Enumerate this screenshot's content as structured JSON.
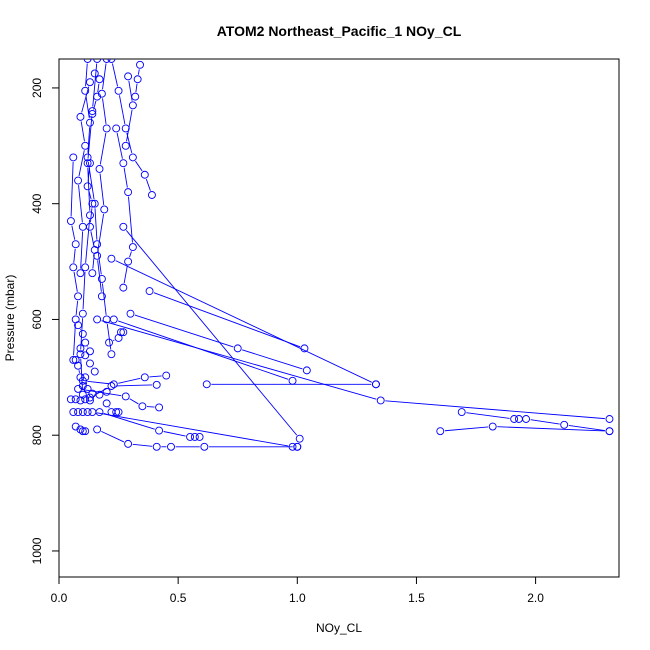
{
  "chart_data": {
    "type": "line",
    "title": "ATOM2 Northeast_Pacific_1 NOy_CL",
    "xlabel": "NOy_CL",
    "ylabel": "Pressure (mbar)",
    "xlim": [
      0.0,
      2.35
    ],
    "ylim": [
      1045,
      150
    ],
    "y_reversed": true,
    "grid": false,
    "x_ticks": [
      0.0,
      0.5,
      1.0,
      1.5,
      2.0
    ],
    "y_ticks": [
      200,
      400,
      600,
      800,
      1000
    ],
    "x_tick_labels": [
      "0.0",
      "0.5",
      "1.0",
      "1.5",
      "2.0"
    ],
    "y_tick_labels": [
      "200",
      "400",
      "600",
      "800",
      "1000"
    ],
    "colors": {
      "series": "#0000ff",
      "axis": "#000000"
    },
    "marker": "open-circle",
    "series": [
      {
        "x": [
          0.12,
          0.11,
          0.13,
          0.12,
          0.15,
          0.16,
          0.18,
          0.2,
          0.22
        ],
        "y": [
          150,
          205,
          260,
          320,
          400,
          470,
          530,
          600,
          660
        ]
      },
      {
        "x": [
          0.16,
          0.14,
          0.12,
          0.13,
          0.11,
          0.1,
          0.09,
          0.1
        ],
        "y": [
          150,
          240,
          330,
          420,
          510,
          590,
          660,
          730
        ]
      },
      {
        "x": [
          0.22,
          0.25,
          0.28,
          0.31,
          0.36,
          0.39
        ],
        "y": [
          150,
          205,
          270,
          320,
          350,
          385
        ]
      },
      {
        "x": [
          0.13,
          0.09,
          0.11,
          0.08,
          0.1,
          0.09
        ],
        "y": [
          190,
          250,
          300,
          360,
          440,
          520
        ]
      },
      {
        "x": [
          0.2,
          0.18,
          0.2,
          0.17,
          0.19,
          0.16,
          0.18
        ],
        "y": [
          150,
          210,
          270,
          340,
          410,
          490,
          560
        ]
      },
      {
        "x": [
          0.06,
          0.05,
          0.07,
          0.06,
          0.08,
          0.07,
          0.06
        ],
        "y": [
          320,
          430,
          470,
          510,
          560,
          600,
          670
        ]
      },
      {
        "x": [
          0.24,
          0.27,
          0.29,
          0.31,
          0.29,
          0.27
        ],
        "y": [
          270,
          330,
          380,
          475,
          500,
          545
        ]
      },
      {
        "x": [
          0.13,
          0.12,
          0.14,
          0.13,
          0.15,
          0.14
        ],
        "y": [
          330,
          370,
          400,
          440,
          480,
          520
        ]
      },
      {
        "x": [
          0.38,
          1.03
        ],
        "y": [
          551,
          650
        ]
      },
      {
        "x": [
          0.3,
          0.75,
          1.04
        ],
        "y": [
          590,
          650,
          688
        ]
      },
      {
        "x": [
          0.22,
          1.33
        ],
        "y": [
          495,
          712
        ]
      },
      {
        "x": [
          0.23,
          0.98
        ],
        "y": [
          600,
          706
        ]
      },
      {
        "x": [
          0.16,
          1.35,
          2.31
        ],
        "y": [
          600,
          740,
          772
        ]
      },
      {
        "x": [
          0.27,
          1.01
        ],
        "y": [
          440,
          806
        ]
      },
      {
        "x": [
          0.62,
          1.33
        ],
        "y": [
          712,
          712
        ]
      },
      {
        "x": [
          0.14,
          0.98,
          1.0
        ],
        "y": [
          760,
          820,
          820
        ]
      },
      {
        "x": [
          1.69,
          1.91,
          1.93,
          1.96,
          2.12,
          2.31
        ],
        "y": [
          760,
          772,
          772,
          772,
          782,
          793
        ]
      },
      {
        "x": [
          1.6,
          1.82,
          2.31
        ],
        "y": [
          793,
          785,
          793
        ]
      },
      {
        "x": [
          0.1,
          0.23,
          0.36,
          0.45
        ],
        "y": [
          706,
          712,
          700,
          697
        ]
      },
      {
        "x": [
          0.13,
          0.22,
          0.41
        ],
        "y": [
          735,
          715,
          713
        ]
      },
      {
        "x": [
          0.08,
          0.28,
          0.35,
          0.42
        ],
        "y": [
          720,
          733,
          750,
          752
        ]
      },
      {
        "x": [
          0.16,
          0.29,
          0.41,
          0.47,
          0.61,
          1.0
        ],
        "y": [
          790,
          815,
          820,
          820,
          820,
          820
        ]
      },
      {
        "x": [
          0.17,
          0.42,
          0.55,
          0.57,
          0.59
        ],
        "y": [
          760,
          792,
          803,
          803,
          803
        ]
      },
      {
        "x": [
          0.05,
          0.07,
          0.09,
          0.11,
          0.13
        ],
        "y": [
          738,
          738,
          740,
          738,
          740
        ]
      },
      {
        "x": [
          0.06,
          0.08,
          0.1,
          0.12
        ],
        "y": [
          760,
          760,
          760,
          760
        ]
      },
      {
        "x": [
          0.07,
          0.09,
          0.1,
          0.11
        ],
        "y": [
          785,
          790,
          793,
          793
        ]
      },
      {
        "x": [
          0.2,
          0.22,
          0.24,
          0.25
        ],
        "y": [
          745,
          760,
          760,
          760
        ]
      },
      {
        "x": [
          0.09,
          0.11,
          0.13,
          0.15
        ],
        "y": [
          650,
          662,
          676,
          690
        ]
      },
      {
        "x": [
          0.08,
          0.1,
          0.11,
          0.13
        ],
        "y": [
          610,
          625,
          640,
          655
        ]
      },
      {
        "x": [
          0.21,
          0.25,
          0.26,
          0.27
        ],
        "y": [
          640,
          632,
          622,
          622
        ]
      },
      {
        "x": [
          0.11,
          0.12,
          0.14,
          0.17,
          0.2
        ],
        "y": [
          700,
          720,
          728,
          730,
          725
        ]
      },
      {
        "x": [
          0.07,
          0.08,
          0.09,
          0.1
        ],
        "y": [
          670,
          680,
          700,
          715
        ]
      },
      {
        "x": [
          0.29,
          0.31,
          0.28
        ],
        "y": [
          180,
          230,
          300
        ]
      },
      {
        "x": [
          0.34,
          0.33,
          0.32
        ],
        "y": [
          160,
          185,
          215
        ]
      },
      {
        "x": [
          0.15,
          0.17,
          0.16,
          0.14
        ],
        "y": [
          175,
          185,
          215,
          245
        ]
      }
    ]
  }
}
